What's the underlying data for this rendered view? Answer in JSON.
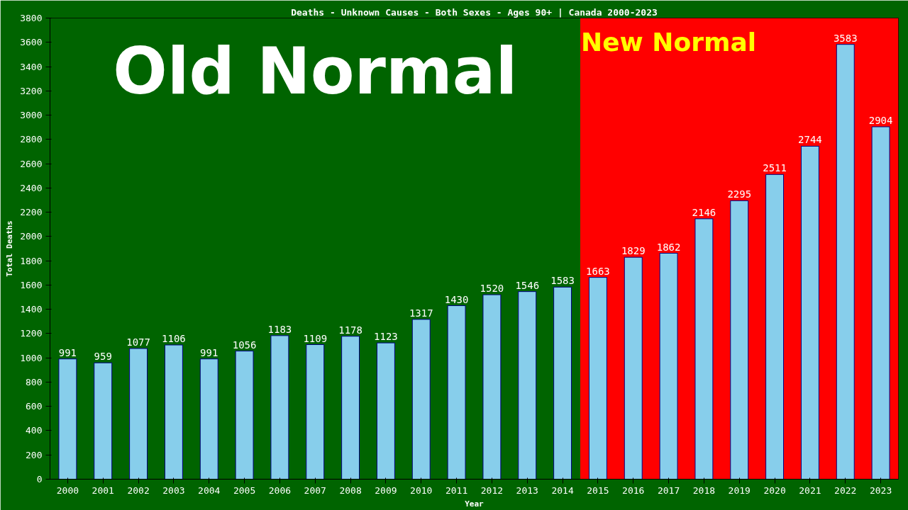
{
  "chart_data": {
    "type": "bar",
    "title": "Deaths - Unknown Causes - Both Sexes - Ages 90+ | Canada 2000-2023",
    "xlabel": "Year",
    "ylabel": "Total Deaths",
    "categories": [
      "2000",
      "2001",
      "2002",
      "2003",
      "2004",
      "2005",
      "2006",
      "2007",
      "2008",
      "2009",
      "2010",
      "2011",
      "2012",
      "2013",
      "2014",
      "2015",
      "2016",
      "2017",
      "2018",
      "2019",
      "2020",
      "2021",
      "2022",
      "2023"
    ],
    "values": [
      991,
      959,
      1077,
      1106,
      991,
      1056,
      1183,
      1109,
      1178,
      1123,
      1317,
      1430,
      1520,
      1546,
      1583,
      1663,
      1829,
      1862,
      2146,
      2295,
      2511,
      2744,
      3583,
      2904
    ],
    "color": "#87ceeb",
    "ylim": [
      0,
      3800
    ],
    "yticks": [
      0,
      200,
      400,
      600,
      800,
      1000,
      1200,
      1400,
      1600,
      1800,
      2000,
      2200,
      2400,
      2600,
      2800,
      3000,
      3200,
      3400,
      3600,
      3800
    ],
    "grid": false,
    "data_labels": true,
    "bands": [
      {
        "axis": "x",
        "from": "2000",
        "to": "2014",
        "label": "Old Normal",
        "color": "#006400"
      },
      {
        "axis": "x",
        "from": "2015",
        "to": "2023",
        "label": "New Normal",
        "color": "#ff0000"
      }
    ]
  }
}
